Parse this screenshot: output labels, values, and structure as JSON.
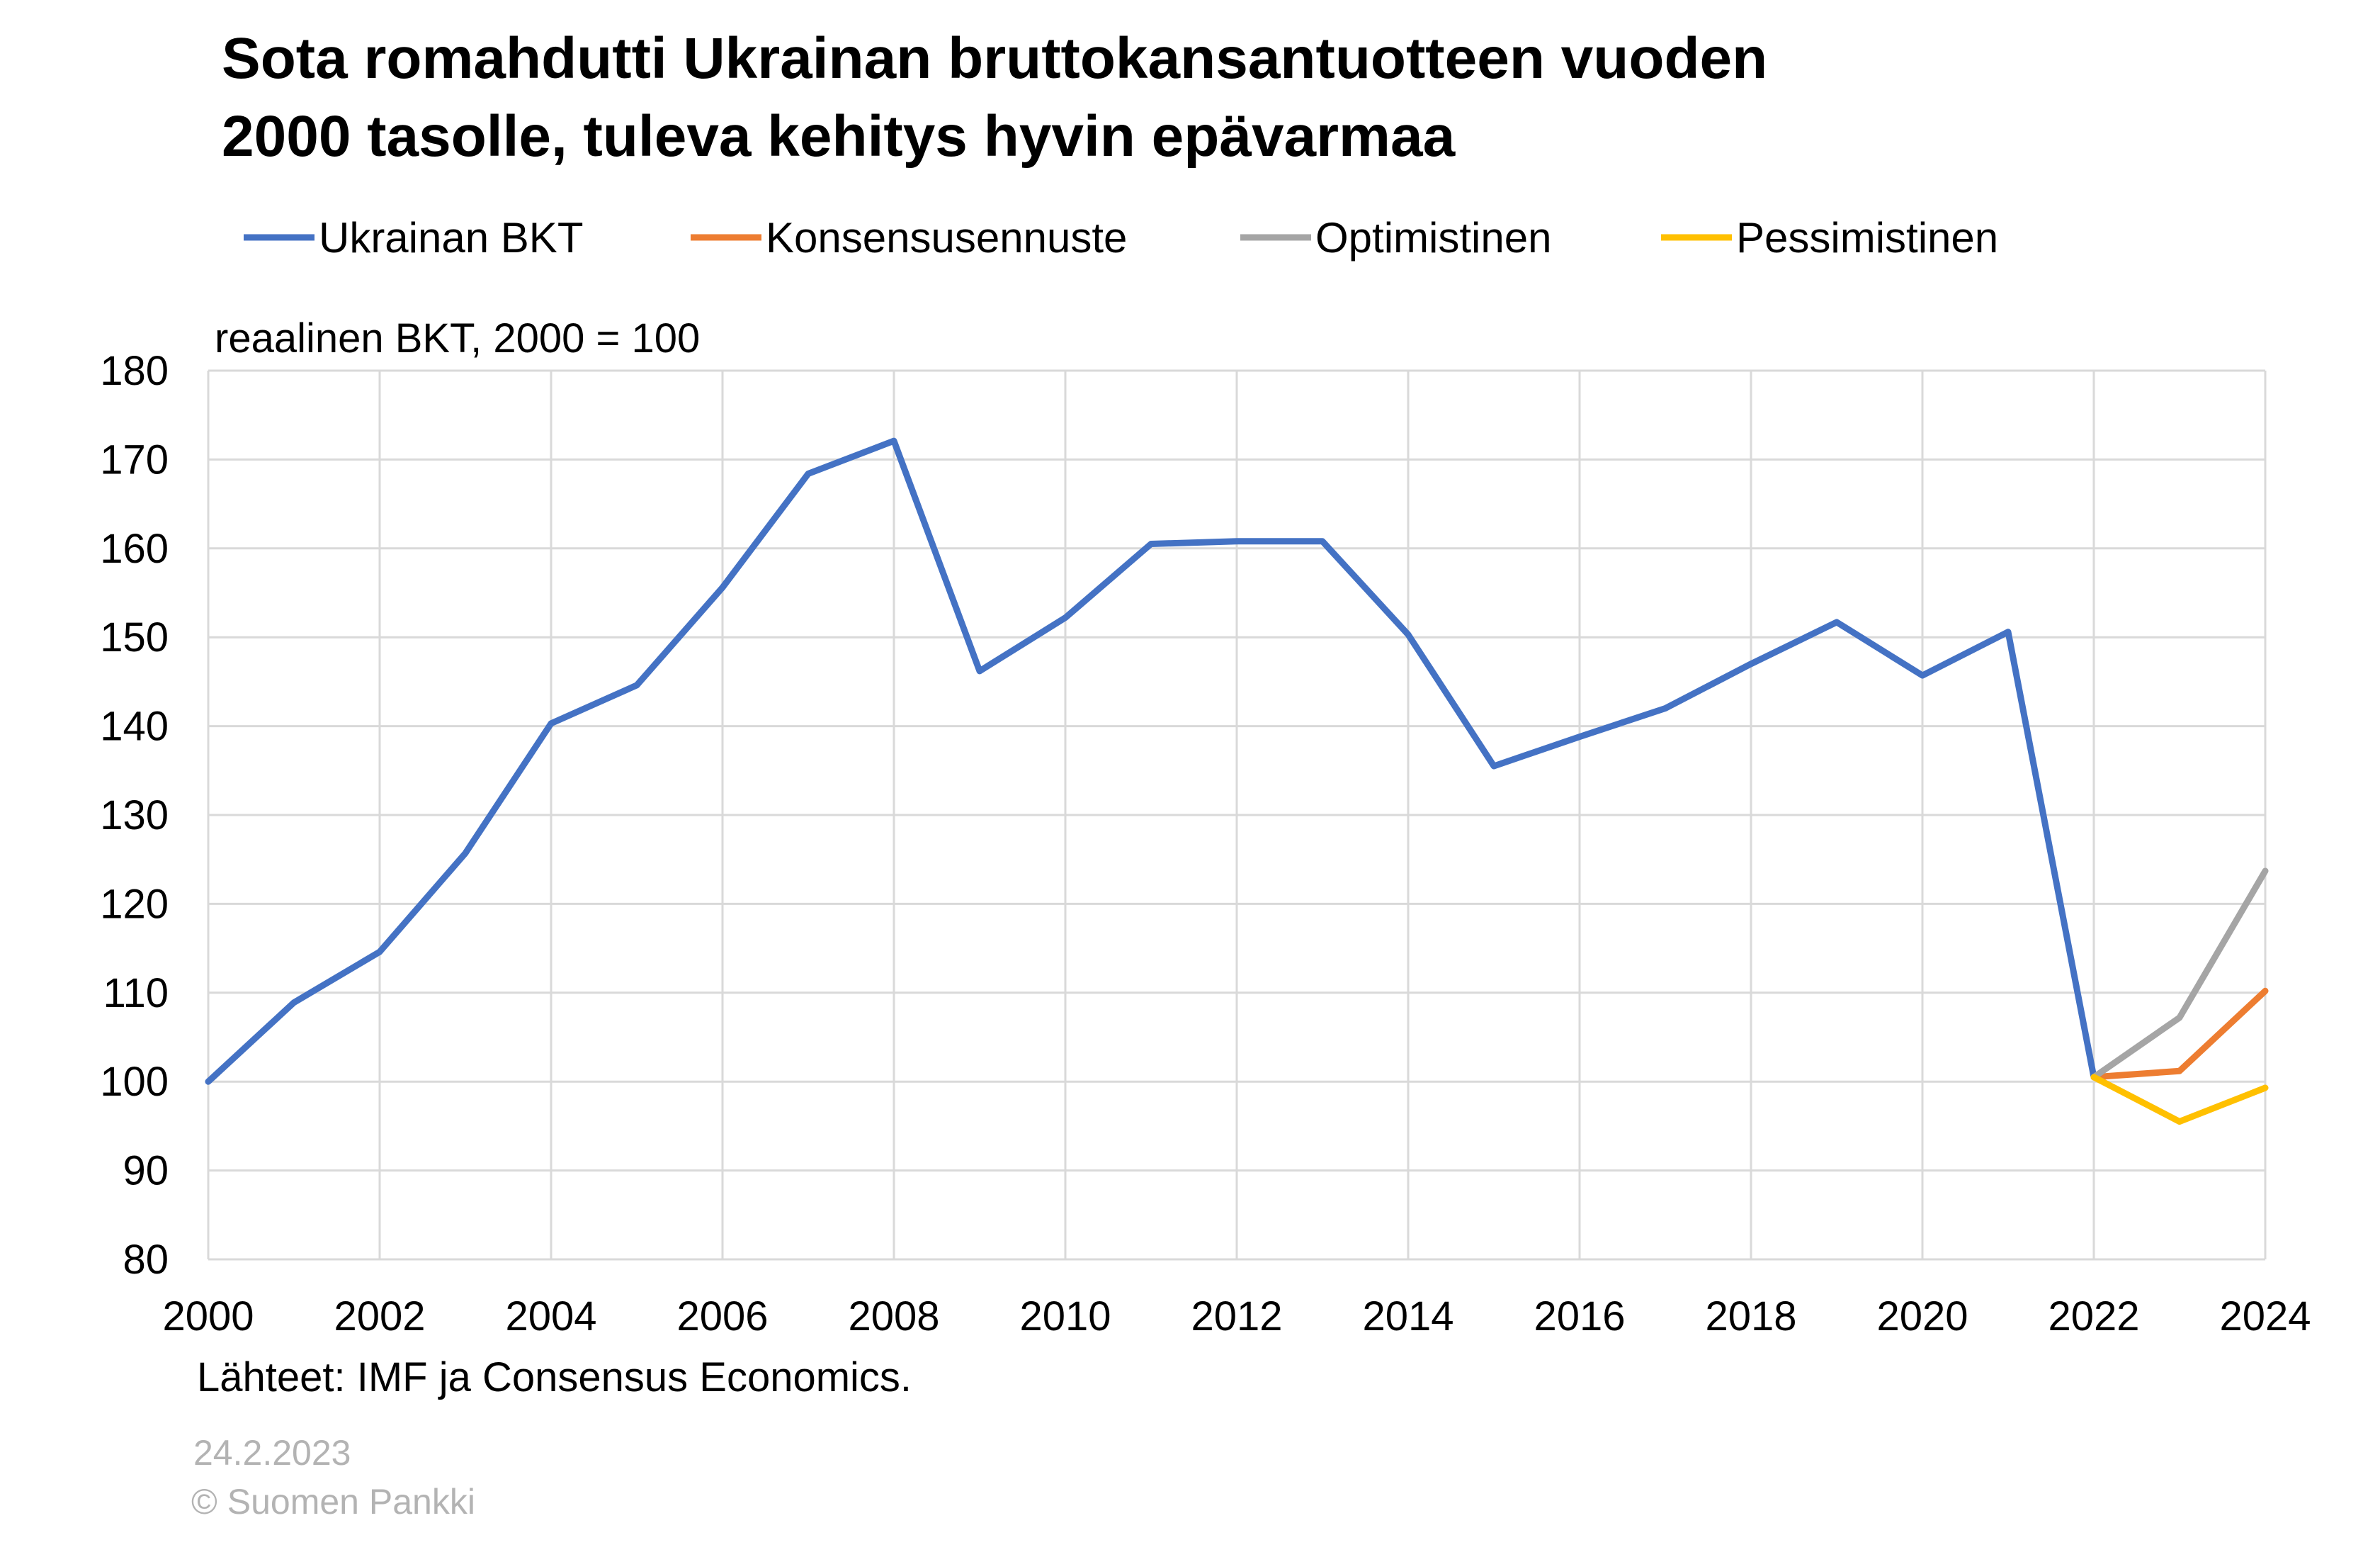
{
  "chart_data": {
    "type": "line",
    "title_lines": [
      "Sota romahdutti Ukrainan bruttokansantuotteen vuoden",
      "2000 tasolle, tuleva kehitys hyvin epävarmaa"
    ],
    "ylabel": "reaalinen BKT, 2000 = 100",
    "xlabel": "",
    "x_range": [
      2000,
      2024
    ],
    "x_ticks": [
      "2000",
      "2002",
      "2004",
      "2006",
      "2008",
      "2010",
      "2012",
      "2014",
      "2016",
      "2018",
      "2020",
      "2022",
      "2024"
    ],
    "ylim": [
      80,
      180
    ],
    "y_ticks": [
      "80",
      "90",
      "100",
      "110",
      "120",
      "130",
      "140",
      "150",
      "160",
      "170",
      "180"
    ],
    "grid": true,
    "legend_position": "top",
    "series": [
      {
        "name": "Ukrainan BKT",
        "color": "#4472c4",
        "x": [
          2000,
          2001,
          2002,
          2003,
          2004,
          2005,
          2006,
          2007,
          2008,
          2009,
          2010,
          2011,
          2012,
          2013,
          2014,
          2015,
          2016,
          2017,
          2018,
          2019,
          2020,
          2021,
          2022
        ],
        "values": [
          100,
          108.9,
          114.6,
          125.7,
          140.3,
          144.6,
          155.6,
          168.4,
          172.1,
          146.2,
          152.2,
          160.5,
          160.8,
          160.8,
          150.3,
          135.5,
          138.8,
          142,
          147,
          151.7,
          145.7,
          150.6,
          100.5
        ]
      },
      {
        "name": "Konsensusennuste",
        "color": "#ed7d31",
        "x": [
          2022,
          2023,
          2024
        ],
        "values": [
          100.5,
          101.2,
          110.2
        ]
      },
      {
        "name": "Optimistinen",
        "color": "#a5a5a5",
        "x": [
          2022,
          2023,
          2024
        ],
        "values": [
          100.5,
          107.2,
          123.7
        ]
      },
      {
        "name": "Pessimistinen",
        "color": "#ffc000",
        "x": [
          2022,
          2023,
          2024
        ],
        "values": [
          100.5,
          95.5,
          99.3
        ]
      }
    ],
    "source": "Lähteet: IMF ja Consensus Economics."
  },
  "footer": {
    "date": "24.2.2023",
    "copyright": "© Suomen Pankki"
  }
}
